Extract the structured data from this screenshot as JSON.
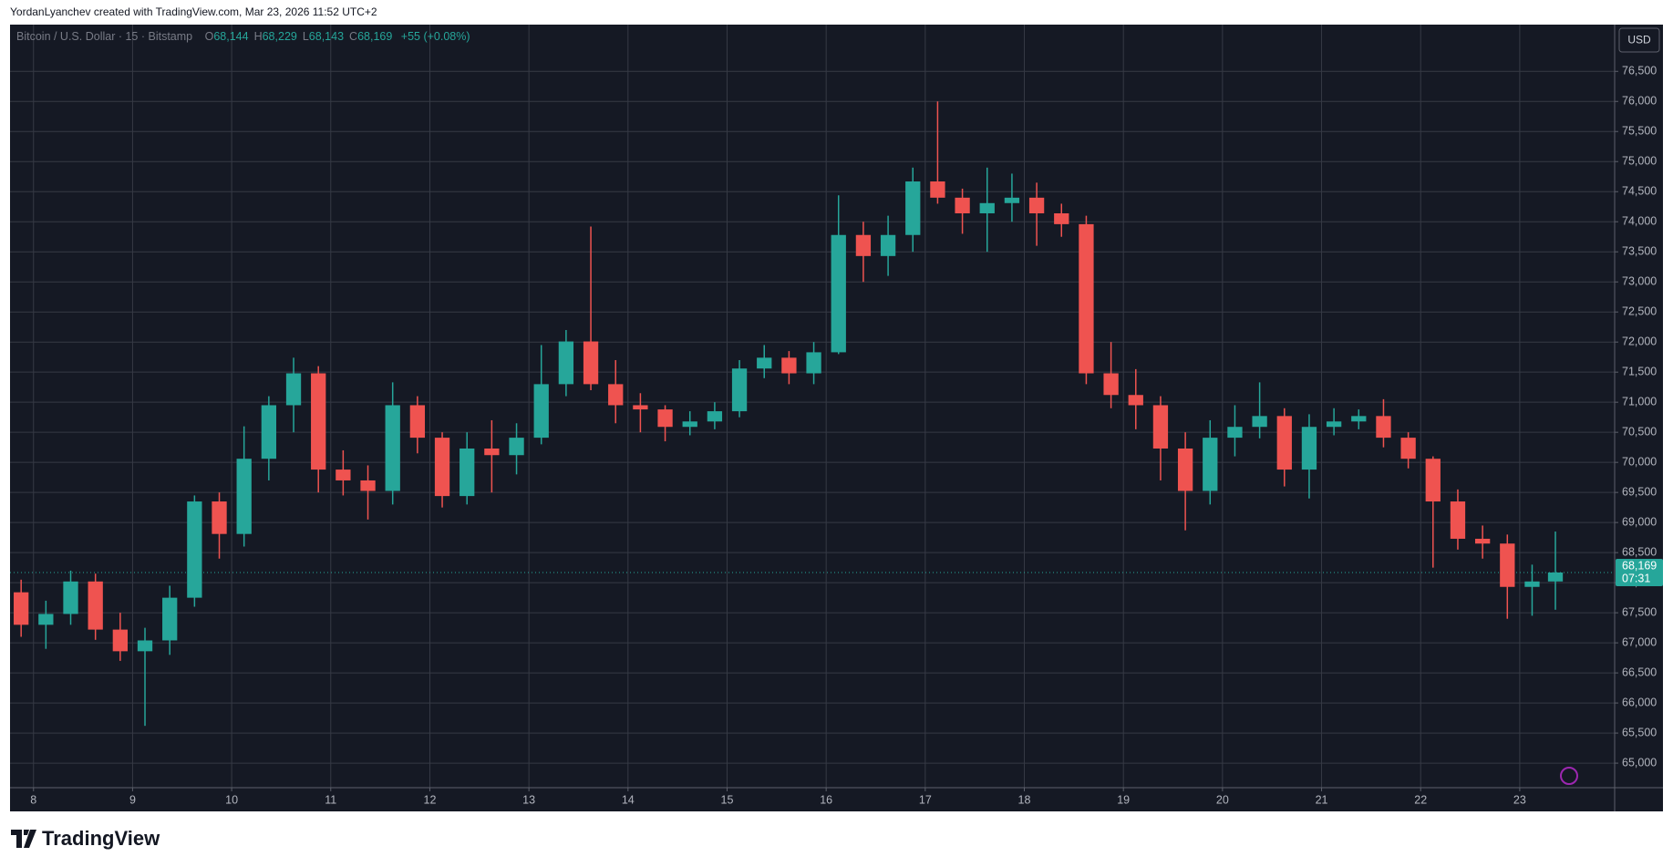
{
  "header": "YordanLyanchev created with TradingView.com, Mar 23, 2026 11:52 UTC+2",
  "brand": "TradingView",
  "chart_data": {
    "type": "candlestick",
    "title": "Bitcoin / U.S. Dollar · 15 · Bitstamp",
    "legend": [
      {
        "key": "O",
        "text": "68,144"
      },
      {
        "key": "H",
        "text": "68,229"
      },
      {
        "key": "L",
        "text": "68,143"
      },
      {
        "key": "C",
        "text": "68,169"
      }
    ],
    "change": "+55 (+0.08%)",
    "currency": "USD",
    "up_color": "#26a69a",
    "down_color": "#ef5350",
    "x": [
      7.875,
      8.125,
      8.375,
      8.625,
      8.875,
      9.125,
      9.375,
      9.625,
      9.875,
      10.125,
      10.375,
      10.625,
      10.875,
      11.125,
      11.375,
      11.625,
      11.875,
      12.125,
      12.375,
      12.625,
      12.875,
      13.125,
      13.375,
      13.625,
      13.875,
      14.125,
      14.375,
      14.625,
      14.875,
      15.125,
      15.375,
      15.625,
      15.875,
      16.125,
      16.375,
      16.625,
      16.875,
      17.125,
      17.375,
      17.625,
      17.875,
      18.125,
      18.375,
      18.625,
      18.875,
      19.125,
      19.375,
      19.625,
      19.875,
      20.125,
      20.375,
      20.625,
      20.875,
      21.125,
      21.375,
      21.625,
      21.875,
      22.125,
      22.375,
      22.625,
      22.875,
      23.125,
      23.36
    ],
    "open": [
      67840,
      67300,
      67480,
      68020,
      67220,
      66860,
      67040,
      67750,
      69350,
      68810,
      70060,
      70950,
      71480,
      69880,
      69700,
      69525,
      70950,
      70410,
      69440,
      70230,
      70120,
      70410,
      71300,
      72010,
      71300,
      70950,
      70880,
      70590,
      70680,
      70850,
      71560,
      71740,
      71480,
      71830,
      73780,
      73430,
      73780,
      74670,
      74400,
      74140,
      74310,
      74400,
      74140,
      73960,
      71480,
      71120,
      70950,
      70230,
      69525,
      70410,
      70590,
      70770,
      69880,
      70590,
      70680,
      70770,
      70410,
      70060,
      69350,
      68730,
      68650,
      67930,
      68020
    ],
    "high": [
      68050,
      67700,
      68200,
      68150,
      67500,
      67250,
      67950,
      69450,
      69500,
      70600,
      71100,
      71740,
      71600,
      70200,
      69950,
      71330,
      71100,
      70500,
      70500,
      70700,
      70650,
      71950,
      72200,
      73920,
      71700,
      71150,
      70950,
      70850,
      71000,
      71700,
      71950,
      71850,
      72000,
      74440,
      74000,
      74100,
      74900,
      76000,
      74550,
      74900,
      74800,
      74650,
      74300,
      74100,
      72000,
      71550,
      71100,
      70500,
      70700,
      70950,
      71330,
      70900,
      70800,
      70900,
      70880,
      71050,
      70500,
      70100,
      69550,
      68950,
      68800,
      68300,
      68850
    ],
    "low": [
      67100,
      66900,
      67300,
      67050,
      66700,
      65620,
      66800,
      67600,
      68400,
      68600,
      69700,
      70500,
      69500,
      69450,
      69050,
      69300,
      70150,
      69250,
      69300,
      69500,
      69800,
      70300,
      71100,
      71200,
      70650,
      70500,
      70350,
      70450,
      70550,
      70750,
      71400,
      71300,
      71300,
      71800,
      73000,
      73100,
      73500,
      74300,
      73800,
      73500,
      74000,
      73600,
      73750,
      71300,
      70900,
      70550,
      69700,
      68870,
      69300,
      70100,
      70400,
      69600,
      69400,
      70450,
      70550,
      70250,
      69900,
      68250,
      68550,
      68400,
      67400,
      67450,
      67550
    ],
    "close": [
      67300,
      67480,
      68020,
      67220,
      66860,
      67040,
      67750,
      69350,
      68810,
      70060,
      70950,
      71480,
      69880,
      69700,
      69525,
      70950,
      70410,
      69440,
      70230,
      70120,
      70410,
      71300,
      72010,
      71300,
      70950,
      70880,
      70590,
      70680,
      70850,
      71560,
      71740,
      71480,
      71830,
      73780,
      73430,
      73780,
      74670,
      74400,
      74140,
      74310,
      74400,
      74140,
      73960,
      71480,
      71120,
      70950,
      70230,
      69525,
      70410,
      70590,
      70770,
      69880,
      70590,
      70680,
      70770,
      70410,
      70060,
      69350,
      68730,
      68650,
      67930,
      68020,
      68169
    ],
    "last_price": {
      "value": 68169,
      "label": "68,169"
    },
    "countdown": "07:31",
    "xlim": [
      7.763,
      23.958
    ],
    "xticks": [
      8,
      9,
      10,
      11,
      12,
      13,
      14,
      15,
      16,
      17,
      18,
      19,
      20,
      21,
      22,
      23
    ],
    "ylim": [
      64592,
      77277
    ],
    "yticks": [
      {
        "value": 65000,
        "label": "65,000"
      },
      {
        "value": 65500,
        "label": "65,500"
      },
      {
        "value": 66000,
        "label": "66,000"
      },
      {
        "value": 66500,
        "label": "66,500"
      },
      {
        "value": 67000,
        "label": "67,000"
      },
      {
        "value": 67500,
        "label": "67,500"
      },
      {
        "value": 68000,
        "label": "68,000"
      },
      {
        "value": 68500,
        "label": "68,500"
      },
      {
        "value": 69000,
        "label": "69,000"
      },
      {
        "value": 69500,
        "label": "69,500"
      },
      {
        "value": 70000,
        "label": "70,000"
      },
      {
        "value": 70500,
        "label": "70,500"
      },
      {
        "value": 71000,
        "label": "71,000"
      },
      {
        "value": 71500,
        "label": "71,500"
      },
      {
        "value": 72000,
        "label": "72,000"
      },
      {
        "value": 72500,
        "label": "72,500"
      },
      {
        "value": 73000,
        "label": "73,000"
      },
      {
        "value": 73500,
        "label": "73,500"
      },
      {
        "value": 74000,
        "label": "74,000"
      },
      {
        "value": 74500,
        "label": "74,500"
      },
      {
        "value": 75000,
        "label": "75,000"
      },
      {
        "value": 75500,
        "label": "75,500"
      },
      {
        "value": 76000,
        "label": "76,000"
      },
      {
        "value": 76500,
        "label": "76,500"
      }
    ],
    "grid": true
  }
}
